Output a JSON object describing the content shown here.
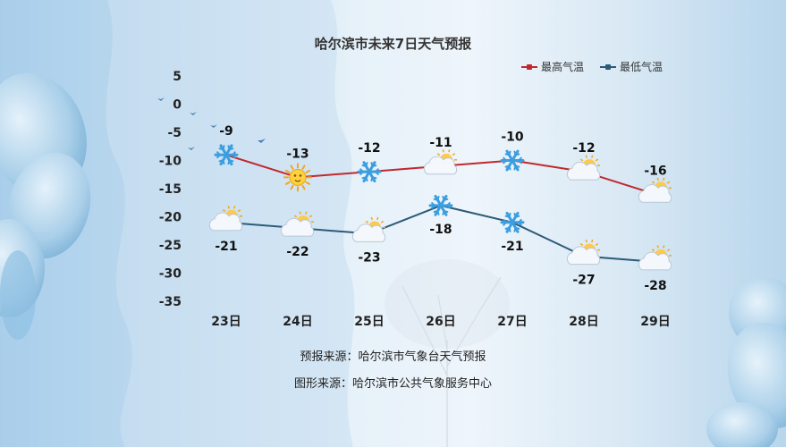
{
  "title": "哈尔滨市未来7日天气预报",
  "colors": {
    "high": "#c0282c",
    "low": "#2c5a78"
  },
  "chart_data": {
    "type": "line",
    "categories": [
      "23日",
      "24日",
      "25日",
      "26日",
      "27日",
      "28日",
      "29日"
    ],
    "series": [
      {
        "name": "最高气温",
        "values": [
          -9,
          -13,
          -12,
          -11,
          -10,
          -12,
          -16
        ],
        "icons": [
          "snow-icon",
          "sunny-icon",
          "snow-icon",
          "partly-cloudy-icon",
          "snow-icon",
          "partly-cloudy-icon",
          "partly-cloudy-icon"
        ]
      },
      {
        "name": "最低气温",
        "values": [
          -21,
          -22,
          -23,
          -18,
          -21,
          -27,
          -28
        ],
        "icons": [
          "partly-cloudy-icon",
          "partly-cloudy-icon",
          "partly-cloudy-icon",
          "snow-icon",
          "snow-icon",
          "partly-cloudy-icon",
          "partly-cloudy-icon"
        ]
      }
    ],
    "yticks": [
      5,
      0,
      -5,
      -10,
      -15,
      -20,
      -25,
      -30,
      -35
    ],
    "ylim": [
      -35,
      5
    ],
    "legend": "top-right",
    "grid": false
  },
  "footer": {
    "source_forecast": "预报来源：哈尔滨市气象台天气预报",
    "source_graphic": "图形来源：哈尔滨市公共气象服务中心"
  }
}
